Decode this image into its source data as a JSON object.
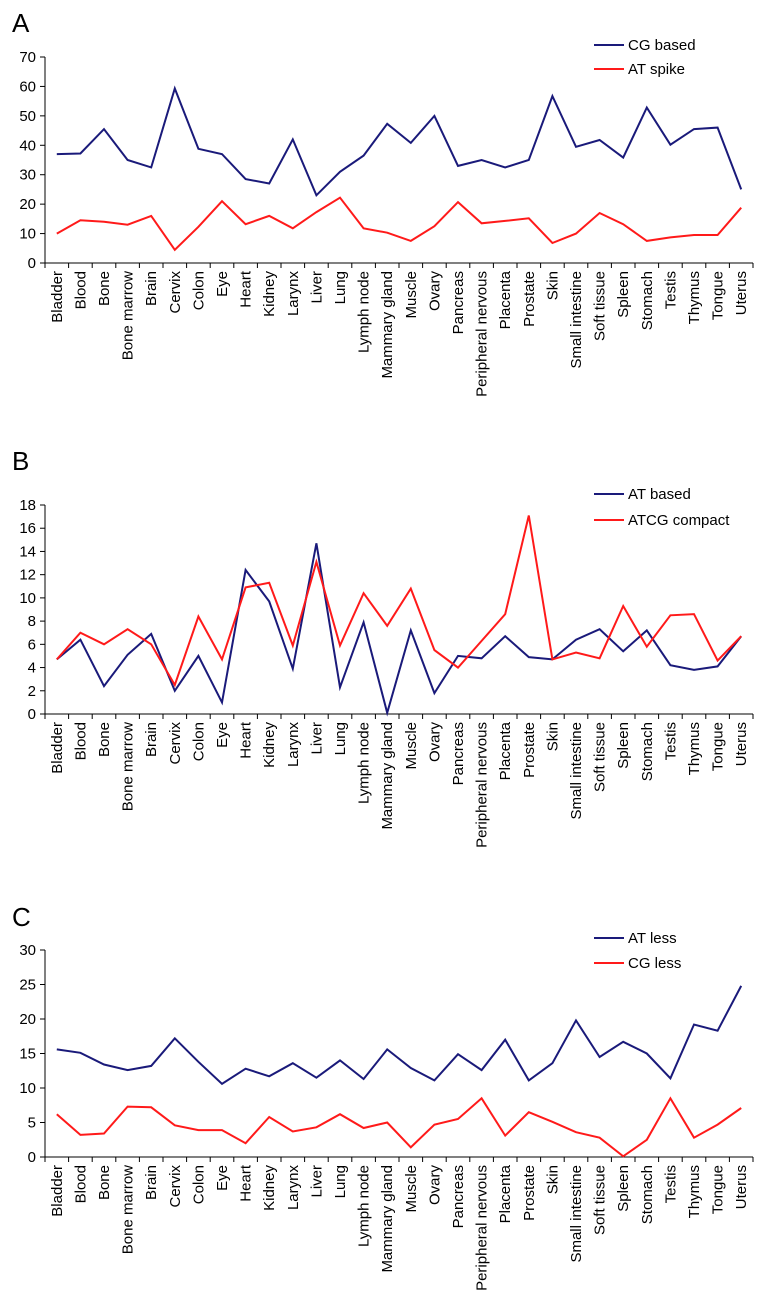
{
  "panels": [
    {
      "label": "A"
    },
    {
      "label": "B"
    },
    {
      "label": "C"
    }
  ],
  "colors": {
    "blue": "#1a1a7a",
    "red": "#ff1a1a",
    "axis": "#000000"
  },
  "chart_data": [
    {
      "type": "line",
      "title": "",
      "xlabel": "",
      "ylabel": "",
      "ylim": [
        0,
        70
      ],
      "yticks": [
        0,
        10,
        20,
        30,
        40,
        50,
        60,
        70
      ],
      "legend_position": "top-right",
      "categories": [
        "Bladder",
        "Blood",
        "Bone",
        "Bone marrow",
        "Brain",
        "Cervix",
        "Colon",
        "Eye",
        "Heart",
        "Kidney",
        "Larynx",
        "Liver",
        "Lung",
        "Lymph node",
        "Mammary gland",
        "Muscle",
        "Ovary",
        "Pancreas",
        "Peripheral nervous",
        "Placenta",
        "Prostate",
        "Skin",
        "Small intestine",
        "Soft tissue",
        "Spleen",
        "Stomach",
        "Testis",
        "Thymus",
        "Tongue",
        "Uterus"
      ],
      "series": [
        {
          "name": "CG based",
          "color": "#1a1a7a",
          "values": [
            37,
            37.2,
            45.5,
            35,
            32.5,
            59.3,
            38.8,
            37,
            28.5,
            27,
            42,
            23,
            31,
            36.5,
            47.3,
            40.8,
            50,
            33,
            35,
            32.5,
            35,
            56.7,
            39.5,
            41.8,
            35.8,
            52.8,
            40.2,
            45.5,
            46,
            25
          ]
        },
        {
          "name": "AT spike",
          "color": "#ff1a1a",
          "values": [
            10,
            14.5,
            14,
            13,
            16,
            4.5,
            12.3,
            21,
            13.2,
            16,
            11.8,
            17.3,
            22.2,
            11.8,
            10.3,
            7.5,
            12.5,
            20.7,
            13.5,
            14.3,
            15.2,
            6.8,
            10,
            17,
            13.2,
            7.5,
            8.7,
            9.5,
            9.5,
            18.8
          ]
        }
      ]
    },
    {
      "type": "line",
      "title": "",
      "xlabel": "",
      "ylabel": "",
      "ylim": [
        0,
        18
      ],
      "yticks": [
        0,
        2,
        4,
        6,
        8,
        10,
        12,
        14,
        16,
        18
      ],
      "legend_position": "top-right",
      "categories": [
        "Bladder",
        "Blood",
        "Bone",
        "Bone marrow",
        "Brain",
        "Cervix",
        "Colon",
        "Eye",
        "Heart",
        "Kidney",
        "Larynx",
        "Liver",
        "Lung",
        "Lymph node",
        "Mammary gland",
        "Muscle",
        "Ovary",
        "Pancreas",
        "Peripheral nervous",
        "Placenta",
        "Prostate",
        "Skin",
        "Small intestine",
        "Soft tissue",
        "Spleen",
        "Stomach",
        "Testis",
        "Thymus",
        "Tongue",
        "Uterus"
      ],
      "series": [
        {
          "name": "AT based",
          "color": "#1a1a7a",
          "values": [
            4.7,
            6.4,
            2.4,
            5.1,
            6.9,
            2,
            5,
            1,
            12.4,
            9.7,
            3.9,
            14.7,
            2.3,
            7.9,
            0.1,
            7.2,
            1.8,
            5,
            4.8,
            6.7,
            4.9,
            4.7,
            6.4,
            7.3,
            5.4,
            7.2,
            4.2,
            3.8,
            4.1,
            6.7
          ]
        },
        {
          "name": "ATCG compact",
          "color": "#ff1a1a",
          "values": [
            4.7,
            7,
            6,
            7.3,
            6,
            2.5,
            8.4,
            4.7,
            10.9,
            11.3,
            5.9,
            13.1,
            5.9,
            10.4,
            7.6,
            10.8,
            5.5,
            4,
            6.3,
            8.6,
            17.1,
            4.7,
            5.3,
            4.8,
            9.3,
            5.8,
            8.5,
            8.6,
            4.6,
            6.7
          ]
        }
      ]
    },
    {
      "type": "line",
      "title": "",
      "xlabel": "",
      "ylabel": "",
      "ylim": [
        0,
        30
      ],
      "yticks": [
        0,
        5,
        10,
        15,
        20,
        25,
        30
      ],
      "legend_position": "top-right",
      "categories": [
        "Bladder",
        "Blood",
        "Bone",
        "Bone marrow",
        "Brain",
        "Cervix",
        "Colon",
        "Eye",
        "Heart",
        "Kidney",
        "Larynx",
        "Liver",
        "Lung",
        "Lymph node",
        "Mammary gland",
        "Muscle",
        "Ovary",
        "Pancreas",
        "Peripheral nervous",
        "Placenta",
        "Prostate",
        "Skin",
        "Small intestine",
        "Soft tissue",
        "Spleen",
        "Stomach",
        "Testis",
        "Thymus",
        "Tongue",
        "Uterus"
      ],
      "series": [
        {
          "name": "AT less",
          "color": "#1a1a7a",
          "values": [
            15.6,
            15.1,
            13.4,
            12.6,
            13.2,
            17.2,
            13.8,
            10.6,
            12.8,
            11.7,
            13.6,
            11.5,
            14,
            11.3,
            15.6,
            12.9,
            11.1,
            14.9,
            12.6,
            17,
            11.1,
            13.6,
            19.8,
            14.5,
            16.7,
            15,
            11.4,
            19.2,
            18.3,
            24.8
          ]
        },
        {
          "name": "CG less",
          "color": "#ff1a1a",
          "values": [
            6.2,
            3.2,
            3.4,
            7.3,
            7.2,
            4.6,
            3.9,
            3.9,
            2,
            5.8,
            3.7,
            4.3,
            6.2,
            4.2,
            5,
            1.4,
            4.7,
            5.5,
            8.5,
            3.1,
            6.5,
            5.1,
            3.6,
            2.8,
            0.1,
            2.5,
            8.5,
            2.8,
            4.7,
            7.1
          ]
        }
      ]
    }
  ]
}
